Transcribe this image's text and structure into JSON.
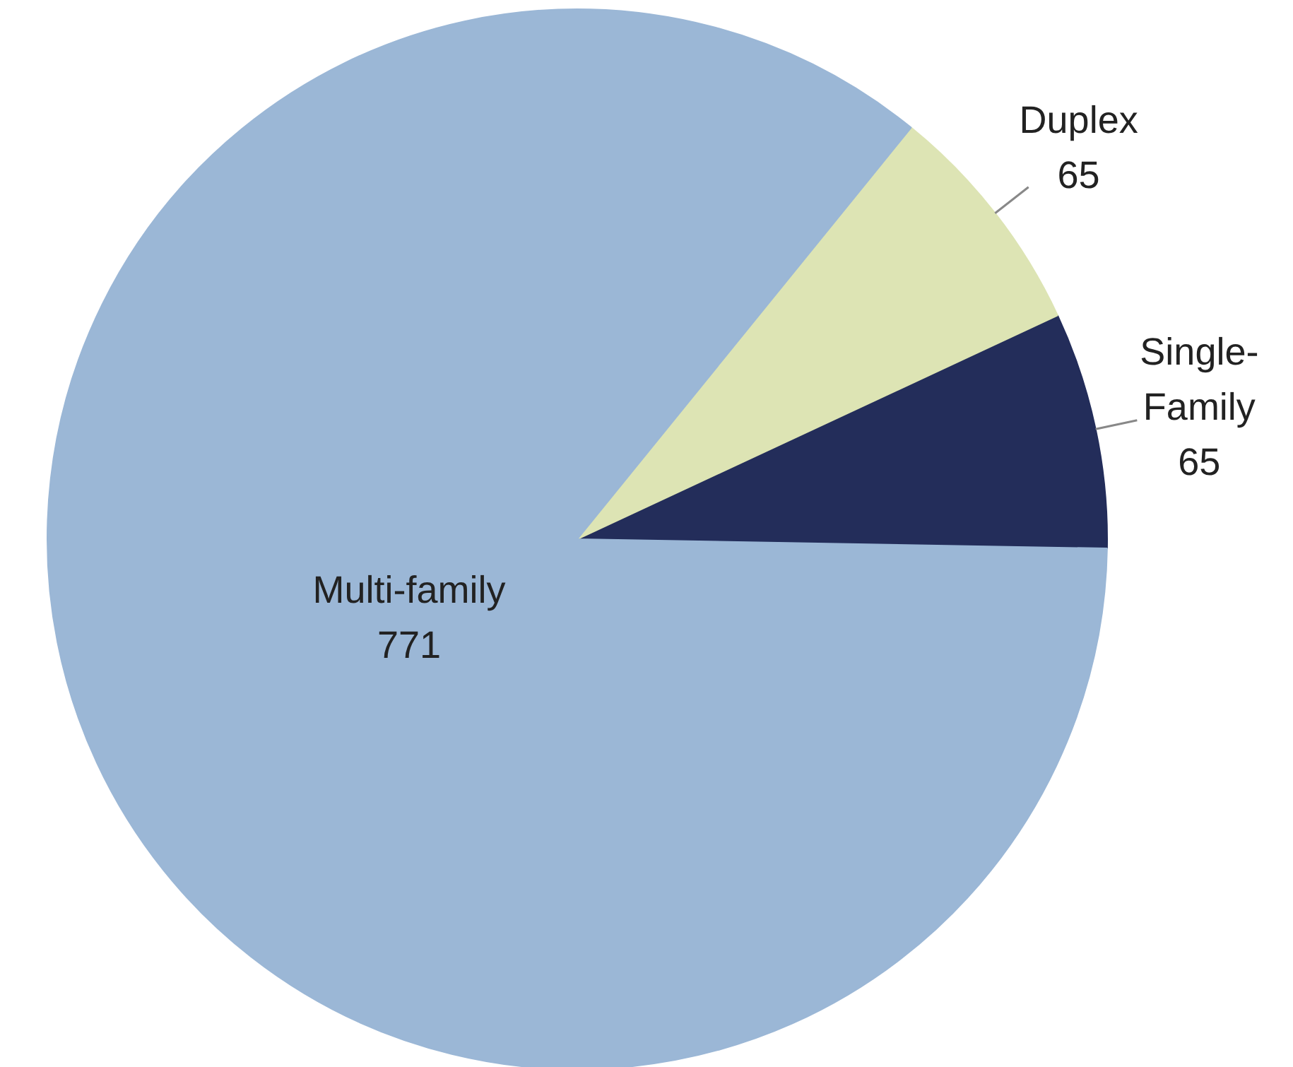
{
  "chart_data": {
    "type": "pie",
    "categories": [
      "Single-Family",
      "Duplex",
      "Multi-family"
    ],
    "values": [
      65,
      65,
      771
    ],
    "colors": [
      "#232d5a",
      "#dde4b4",
      "#9bb7d6"
    ],
    "data_labels": true
  }
}
